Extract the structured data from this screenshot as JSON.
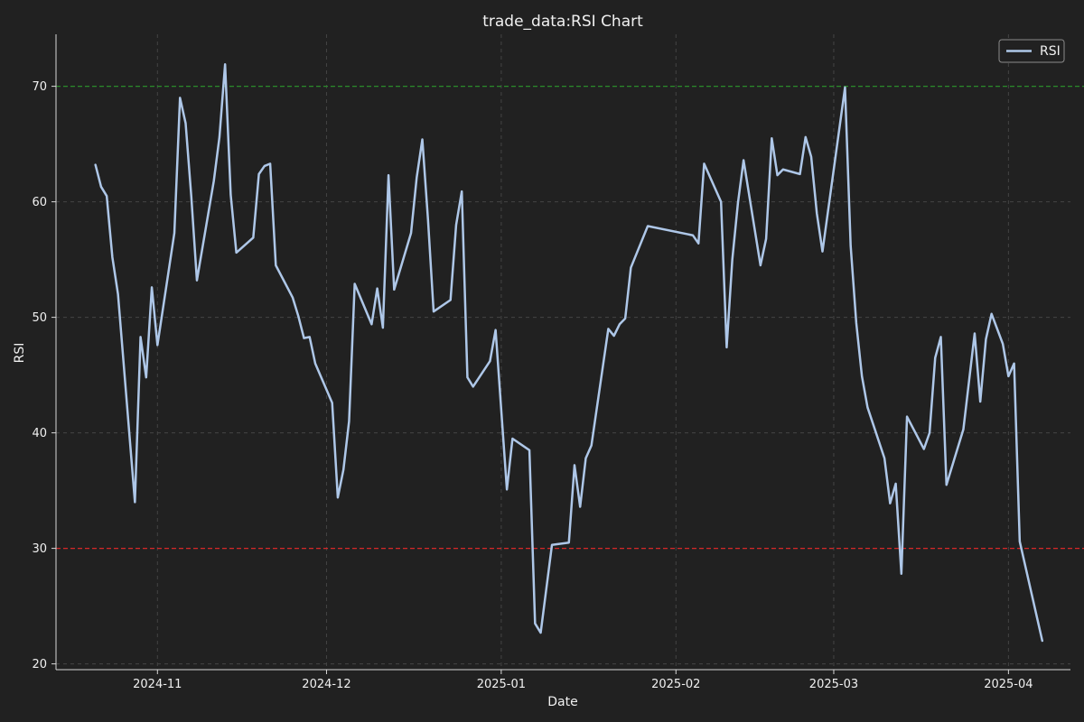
{
  "chart_data": {
    "type": "line",
    "title": "trade_data:RSI Chart",
    "xlabel": "Date",
    "ylabel": "RSI",
    "ylim": [
      19.5,
      74.5
    ],
    "xlim": [
      "2024-10-14",
      "2025-04-12"
    ],
    "xticks": [
      "2024-11-01",
      "2024-12-01",
      "2025-01-01",
      "2025-02-01",
      "2025-03-01",
      "2025-04-01"
    ],
    "xtick_labels": [
      "2024-11",
      "2024-12",
      "2025-01",
      "2025-02",
      "2025-03",
      "2025-04"
    ],
    "yticks": [
      20,
      30,
      40,
      50,
      60,
      70
    ],
    "grid": true,
    "legend": {
      "position": "top-right",
      "entries": [
        "RSI"
      ]
    },
    "reference_lines": [
      {
        "y": 70,
        "color": "#2a8a2a"
      },
      {
        "y": 30,
        "color": "#d62728"
      }
    ],
    "series": [
      {
        "name": "RSI",
        "color": "#aec7e8",
        "points": [
          [
            "2024-10-21",
            63.2
          ],
          [
            "2024-10-22",
            61.3
          ],
          [
            "2024-10-23",
            60.5
          ],
          [
            "2024-10-24",
            55.2
          ],
          [
            "2024-10-25",
            52.0
          ],
          [
            "2024-10-28",
            34.0
          ],
          [
            "2024-10-29",
            48.3
          ],
          [
            "2024-10-30",
            44.8
          ],
          [
            "2024-10-31",
            52.6
          ],
          [
            "2024-11-01",
            47.6
          ],
          [
            "2024-11-04",
            57.3
          ],
          [
            "2024-11-05",
            69.0
          ],
          [
            "2024-11-06",
            66.8
          ],
          [
            "2024-11-07",
            60.5
          ],
          [
            "2024-11-08",
            53.2
          ],
          [
            "2024-11-11",
            61.8
          ],
          [
            "2024-11-12",
            65.6
          ],
          [
            "2024-11-13",
            71.9
          ],
          [
            "2024-11-14",
            60.6
          ],
          [
            "2024-11-15",
            55.6
          ],
          [
            "2024-11-18",
            56.9
          ],
          [
            "2024-11-19",
            62.4
          ],
          [
            "2024-11-20",
            63.1
          ],
          [
            "2024-11-21",
            63.3
          ],
          [
            "2024-11-22",
            54.5
          ],
          [
            "2024-11-25",
            51.7
          ],
          [
            "2024-11-26",
            50.1
          ],
          [
            "2024-11-27",
            48.2
          ],
          [
            "2024-11-28",
            48.3
          ],
          [
            "2024-11-29",
            46.0
          ],
          [
            "2024-12-02",
            42.6
          ],
          [
            "2024-12-03",
            34.4
          ],
          [
            "2024-12-04",
            36.8
          ],
          [
            "2024-12-05",
            41.0
          ],
          [
            "2024-12-06",
            52.9
          ],
          [
            "2024-12-09",
            49.4
          ],
          [
            "2024-12-10",
            52.5
          ],
          [
            "2024-12-11",
            49.1
          ],
          [
            "2024-12-12",
            62.3
          ],
          [
            "2024-12-13",
            52.4
          ],
          [
            "2024-12-16",
            57.3
          ],
          [
            "2024-12-17",
            62.1
          ],
          [
            "2024-12-18",
            65.4
          ],
          [
            "2024-12-19",
            58.5
          ],
          [
            "2024-12-20",
            50.5
          ],
          [
            "2024-12-23",
            51.5
          ],
          [
            "2024-12-24",
            58.0
          ],
          [
            "2024-12-25",
            60.9
          ],
          [
            "2024-12-26",
            44.8
          ],
          [
            "2024-12-27",
            44.0
          ],
          [
            "2024-12-30",
            46.2
          ],
          [
            "2024-12-31",
            48.9
          ],
          [
            "2025-01-02",
            35.1
          ],
          [
            "2025-01-03",
            39.5
          ],
          [
            "2025-01-06",
            38.5
          ],
          [
            "2025-01-07",
            23.5
          ],
          [
            "2025-01-08",
            22.7
          ],
          [
            "2025-01-10",
            30.3
          ],
          [
            "2025-01-13",
            30.5
          ],
          [
            "2025-01-14",
            37.2
          ],
          [
            "2025-01-15",
            33.6
          ],
          [
            "2025-01-16",
            37.8
          ],
          [
            "2025-01-17",
            38.9
          ],
          [
            "2025-01-20",
            49.0
          ],
          [
            "2025-01-21",
            48.4
          ],
          [
            "2025-01-22",
            49.4
          ],
          [
            "2025-01-23",
            49.9
          ],
          [
            "2025-01-24",
            54.3
          ],
          [
            "2025-01-27",
            57.9
          ],
          [
            "2025-02-04",
            57.1
          ],
          [
            "2025-02-05",
            56.4
          ],
          [
            "2025-02-06",
            63.3
          ],
          [
            "2025-02-09",
            60.0
          ],
          [
            "2025-02-10",
            47.4
          ],
          [
            "2025-02-11",
            55.0
          ],
          [
            "2025-02-12",
            59.9
          ],
          [
            "2025-02-13",
            63.6
          ],
          [
            "2025-02-16",
            54.5
          ],
          [
            "2025-02-17",
            56.8
          ],
          [
            "2025-02-18",
            65.5
          ],
          [
            "2025-02-19",
            62.3
          ],
          [
            "2025-02-20",
            62.8
          ],
          [
            "2025-02-23",
            62.4
          ],
          [
            "2025-02-24",
            65.6
          ],
          [
            "2025-02-25",
            63.9
          ],
          [
            "2025-02-26",
            59.0
          ],
          [
            "2025-02-27",
            55.7
          ],
          [
            "2025-03-03",
            69.9
          ],
          [
            "2025-03-04",
            56.2
          ],
          [
            "2025-03-05",
            49.5
          ],
          [
            "2025-03-06",
            44.9
          ],
          [
            "2025-03-07",
            42.2
          ],
          [
            "2025-03-10",
            37.8
          ],
          [
            "2025-03-11",
            33.9
          ],
          [
            "2025-03-12",
            35.6
          ],
          [
            "2025-03-13",
            27.8
          ],
          [
            "2025-03-14",
            41.4
          ],
          [
            "2025-03-17",
            38.6
          ],
          [
            "2025-03-18",
            40.0
          ],
          [
            "2025-03-19",
            46.5
          ],
          [
            "2025-03-20",
            48.3
          ],
          [
            "2025-03-21",
            35.5
          ],
          [
            "2025-03-24",
            40.3
          ],
          [
            "2025-03-26",
            48.6
          ],
          [
            "2025-03-27",
            42.7
          ],
          [
            "2025-03-28",
            48.1
          ],
          [
            "2025-03-29",
            50.3
          ],
          [
            "2025-03-31",
            47.7
          ],
          [
            "2025-04-01",
            44.9
          ],
          [
            "2025-04-02",
            46.0
          ],
          [
            "2025-04-03",
            30.6
          ],
          [
            "2025-04-07",
            22.0
          ]
        ]
      }
    ]
  }
}
